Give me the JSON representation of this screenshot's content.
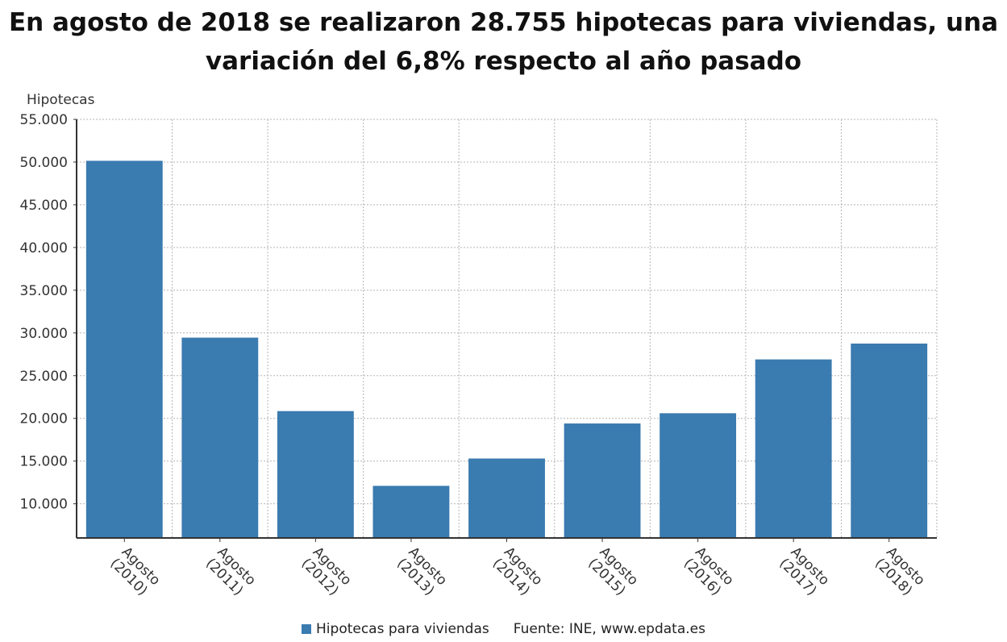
{
  "chart_data": {
    "type": "bar",
    "title_line1": "En agosto de 2018 se realizaron 28.755 hipotecas para viviendas, una",
    "title_line2": "variación del 6,8% respecto al año pasado",
    "ylabel": "Hipotecas",
    "xlabel": "",
    "categories": [
      [
        "Agosto",
        "(2010)"
      ],
      [
        "Agosto",
        "(2011)"
      ],
      [
        "Agosto",
        "(2012)"
      ],
      [
        "Agosto",
        "(2013)"
      ],
      [
        "Agosto",
        "(2014)"
      ],
      [
        "Agosto",
        "(2015)"
      ],
      [
        "Agosto",
        "(2016)"
      ],
      [
        "Agosto",
        "(2017)"
      ],
      [
        "Agosto",
        "(2018)"
      ]
    ],
    "series": [
      {
        "name": "Hipotecas para viviendas",
        "values": [
          50150,
          29450,
          20850,
          12100,
          15300,
          19400,
          20600,
          26900,
          28755
        ]
      }
    ],
    "ylim": [
      6000,
      55000
    ],
    "yticks": [
      10000,
      15000,
      20000,
      25000,
      30000,
      35000,
      40000,
      45000,
      50000,
      55000
    ],
    "ytick_labels": [
      "10.000",
      "15.000",
      "20.000",
      "25.000",
      "30.000",
      "35.000",
      "40.000",
      "45.000",
      "50.000",
      "55.000"
    ],
    "grid": true,
    "bar_color": "#3a7bb0",
    "legend_position": "bottom",
    "legend_label": "Hipotecas para viviendas",
    "source": "Fuente: INE, www.epdata.es"
  }
}
